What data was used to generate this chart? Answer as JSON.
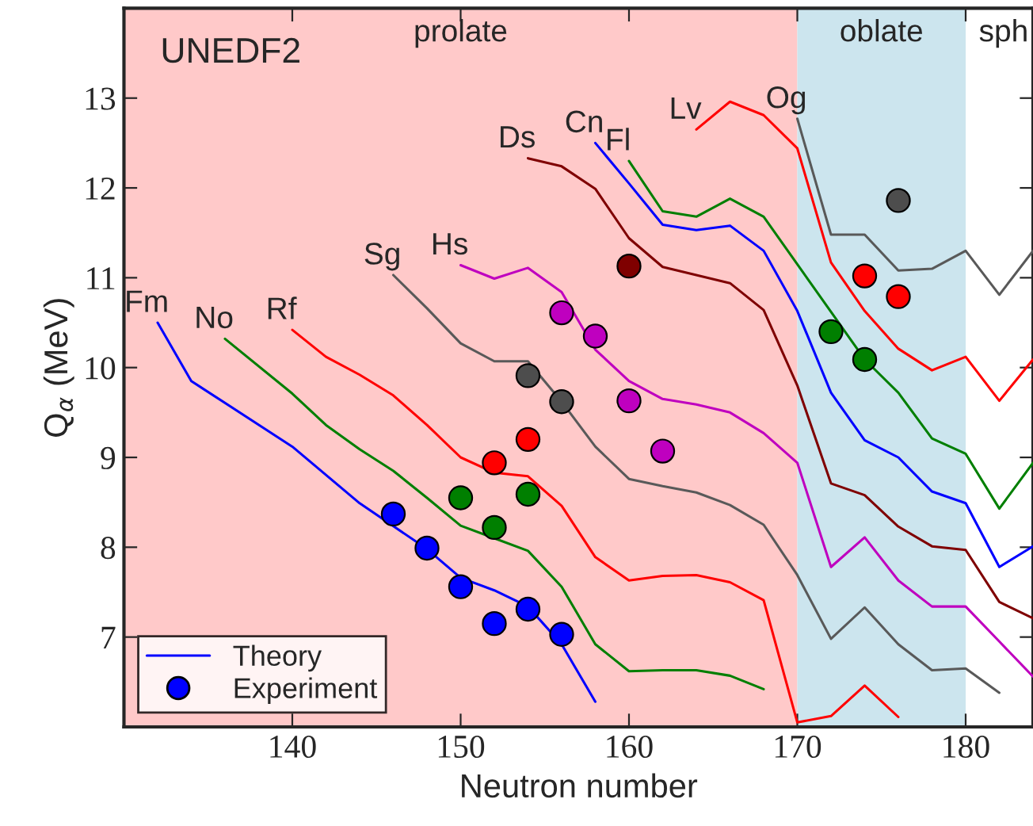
{
  "chart_data": {
    "type": "line",
    "xlabel": "Neutron number",
    "ylabel": "Q$_{α}$ (MeV)",
    "xlim": [
      130,
      184
    ],
    "ylim": [
      6,
      14
    ],
    "xticks": [
      140,
      150,
      160,
      170,
      180
    ],
    "yticks": [
      7,
      8,
      9,
      10,
      11,
      12,
      13
    ],
    "grid": false,
    "legend": "bottom left",
    "line_style": "solid",
    "bands": [
      {
        "axis": "x",
        "from": 130,
        "to": 170,
        "label": "prolate",
        "color": "#ffc9c9"
      },
      {
        "axis": "x",
        "from": 170,
        "to": 180,
        "label": "oblate",
        "color": "#cce5ee"
      }
    ],
    "annotations": [
      "UNEDF2",
      "sph",
      {
        "text": "Fm",
        "x": 132,
        "y": 10.5
      },
      {
        "text": "No",
        "x": 136,
        "y": 10.32
      },
      {
        "text": "Rf",
        "x": 140,
        "y": 10.42
      },
      {
        "text": "Sg",
        "x": 146,
        "y": 11.03
      },
      {
        "text": "Hs",
        "x": 150,
        "y": 11.14
      },
      {
        "text": "Ds",
        "x": 154,
        "y": 12.33
      },
      {
        "text": "Cn",
        "x": 158,
        "y": 12.5
      },
      {
        "text": "Fl",
        "x": 160,
        "y": 12.3
      },
      {
        "text": "Lv",
        "x": 164,
        "y": 12.65
      },
      {
        "text": "Og",
        "x": 170,
        "y": 12.77
      }
    ],
    "series": [
      {
        "name": "Theory",
        "color": "#0000ff",
        "x": [
          132,
          134,
          140,
          144,
          148,
          150,
          152,
          154,
          156,
          158
        ],
        "values": [
          10.5,
          9.85,
          9.12,
          8.49,
          7.98,
          7.66,
          7.52,
          7.34,
          6.92,
          6.28
        ]
      },
      {
        "color": "#007f00",
        "x": [
          136,
          140,
          142,
          144,
          146,
          148,
          150,
          152,
          154,
          156,
          158,
          160,
          162,
          164,
          166,
          168
        ],
        "values": [
          10.32,
          9.71,
          9.36,
          9.09,
          8.85,
          8.55,
          8.24,
          8.1,
          7.96,
          7.56,
          6.92,
          6.62,
          6.63,
          6.63,
          6.57,
          6.42
        ]
      },
      {
        "color": "#ff0000",
        "x": [
          140,
          142,
          144,
          146,
          148,
          150,
          152,
          154,
          156,
          158,
          160,
          162,
          164,
          166,
          168,
          170,
          172,
          174,
          176
        ],
        "values": [
          10.42,
          10.12,
          9.92,
          9.69,
          9.36,
          9.0,
          8.83,
          8.79,
          8.46,
          7.89,
          7.63,
          7.68,
          7.69,
          7.61,
          7.41,
          6.05,
          6.12,
          6.46,
          6.11
        ]
      },
      {
        "color": "#595959",
        "x": [
          146,
          148,
          150,
          152,
          154,
          156,
          158,
          160,
          162,
          164,
          166,
          168,
          170,
          172,
          174,
          176,
          178,
          180,
          182
        ],
        "values": [
          11.03,
          10.66,
          10.27,
          10.07,
          10.07,
          9.62,
          9.12,
          8.76,
          8.68,
          8.61,
          8.47,
          8.25,
          7.69,
          6.98,
          7.33,
          6.92,
          6.63,
          6.65,
          6.38
        ]
      },
      {
        "color": "#bf00bf",
        "x": [
          150,
          152,
          154,
          156,
          158,
          160,
          162,
          164,
          166,
          168,
          170,
          172,
          174,
          176,
          178,
          180,
          182,
          184
        ],
        "values": [
          11.14,
          10.99,
          11.11,
          10.84,
          10.2,
          9.85,
          9.65,
          9.59,
          9.5,
          9.27,
          8.94,
          7.78,
          8.11,
          7.63,
          7.34,
          7.34,
          6.95,
          6.56
        ]
      },
      {
        "color": "#7f0000",
        "x": [
          154,
          156,
          158,
          160,
          162,
          164,
          166,
          168,
          170,
          172,
          174,
          176,
          178,
          180,
          182,
          184
        ],
        "values": [
          12.33,
          12.24,
          11.99,
          11.44,
          11.12,
          11.03,
          10.94,
          10.64,
          9.8,
          8.71,
          8.58,
          8.23,
          8.01,
          7.97,
          7.39,
          7.21
        ]
      },
      {
        "color": "#0000ff",
        "x": [
          158,
          160,
          162,
          164,
          166,
          168,
          170,
          172,
          174,
          176,
          178,
          180,
          182,
          184
        ],
        "values": [
          12.5,
          12.05,
          11.59,
          11.53,
          11.58,
          11.3,
          10.63,
          9.72,
          9.19,
          9.0,
          8.62,
          8.49,
          7.78,
          8.01
        ]
      },
      {
        "color": "#007f00",
        "x": [
          160,
          162,
          164,
          166,
          168,
          170,
          172,
          174,
          176,
          178,
          180,
          182,
          184
        ],
        "values": [
          12.3,
          11.74,
          11.68,
          11.88,
          11.68,
          11.15,
          10.62,
          10.09,
          9.72,
          9.21,
          9.04,
          8.43,
          8.94
        ]
      },
      {
        "color": "#ff0000",
        "x": [
          164,
          166,
          168,
          170,
          172,
          174,
          176,
          178,
          180,
          182,
          184
        ],
        "values": [
          12.65,
          12.96,
          12.81,
          12.44,
          11.17,
          10.63,
          10.21,
          9.97,
          10.12,
          9.63,
          10.09
        ]
      },
      {
        "color": "#595959",
        "x": [
          170,
          172,
          174,
          176,
          178,
          180,
          182,
          184
        ],
        "values": [
          12.77,
          11.48,
          11.48,
          11.08,
          11.1,
          11.3,
          10.81,
          11.3
        ]
      },
      {
        "name": "Experiment",
        "type": "scatter",
        "marker": "circle",
        "color": "#0000ff",
        "x": [
          146,
          148,
          150,
          152,
          154,
          156
        ],
        "values": [
          8.37,
          7.99,
          7.56,
          7.15,
          7.31,
          7.03
        ]
      },
      {
        "type": "scatter",
        "marker": "circle",
        "color": "#007f00",
        "x": [
          150,
          152,
          154
        ],
        "values": [
          8.55,
          8.22,
          8.59
        ]
      },
      {
        "type": "scatter",
        "marker": "circle",
        "color": "#ff0000",
        "x": [
          152,
          154
        ],
        "values": [
          8.94,
          9.2
        ]
      },
      {
        "type": "scatter",
        "marker": "circle",
        "color": "#4d4d4d",
        "x": [
          154,
          156
        ],
        "values": [
          9.91,
          9.62
        ]
      },
      {
        "type": "scatter",
        "marker": "circle",
        "color": "#bf00bf",
        "x": [
          156,
          158,
          160,
          162
        ],
        "values": [
          10.61,
          10.35,
          9.63,
          9.07
        ]
      },
      {
        "type": "scatter",
        "marker": "circle",
        "color": "#7f0000",
        "x": [
          160
        ],
        "values": [
          11.13
        ]
      },
      {
        "type": "scatter",
        "marker": "circle",
        "color": "#007f00",
        "x": [
          172,
          174
        ],
        "values": [
          10.4,
          10.09
        ]
      },
      {
        "type": "scatter",
        "marker": "circle",
        "color": "#ff0000",
        "x": [
          174,
          176
        ],
        "values": [
          11.02,
          10.79
        ]
      },
      {
        "type": "scatter",
        "marker": "circle",
        "color": "#4d4d4d",
        "x": [
          176
        ],
        "values": [
          11.86
        ]
      }
    ]
  }
}
